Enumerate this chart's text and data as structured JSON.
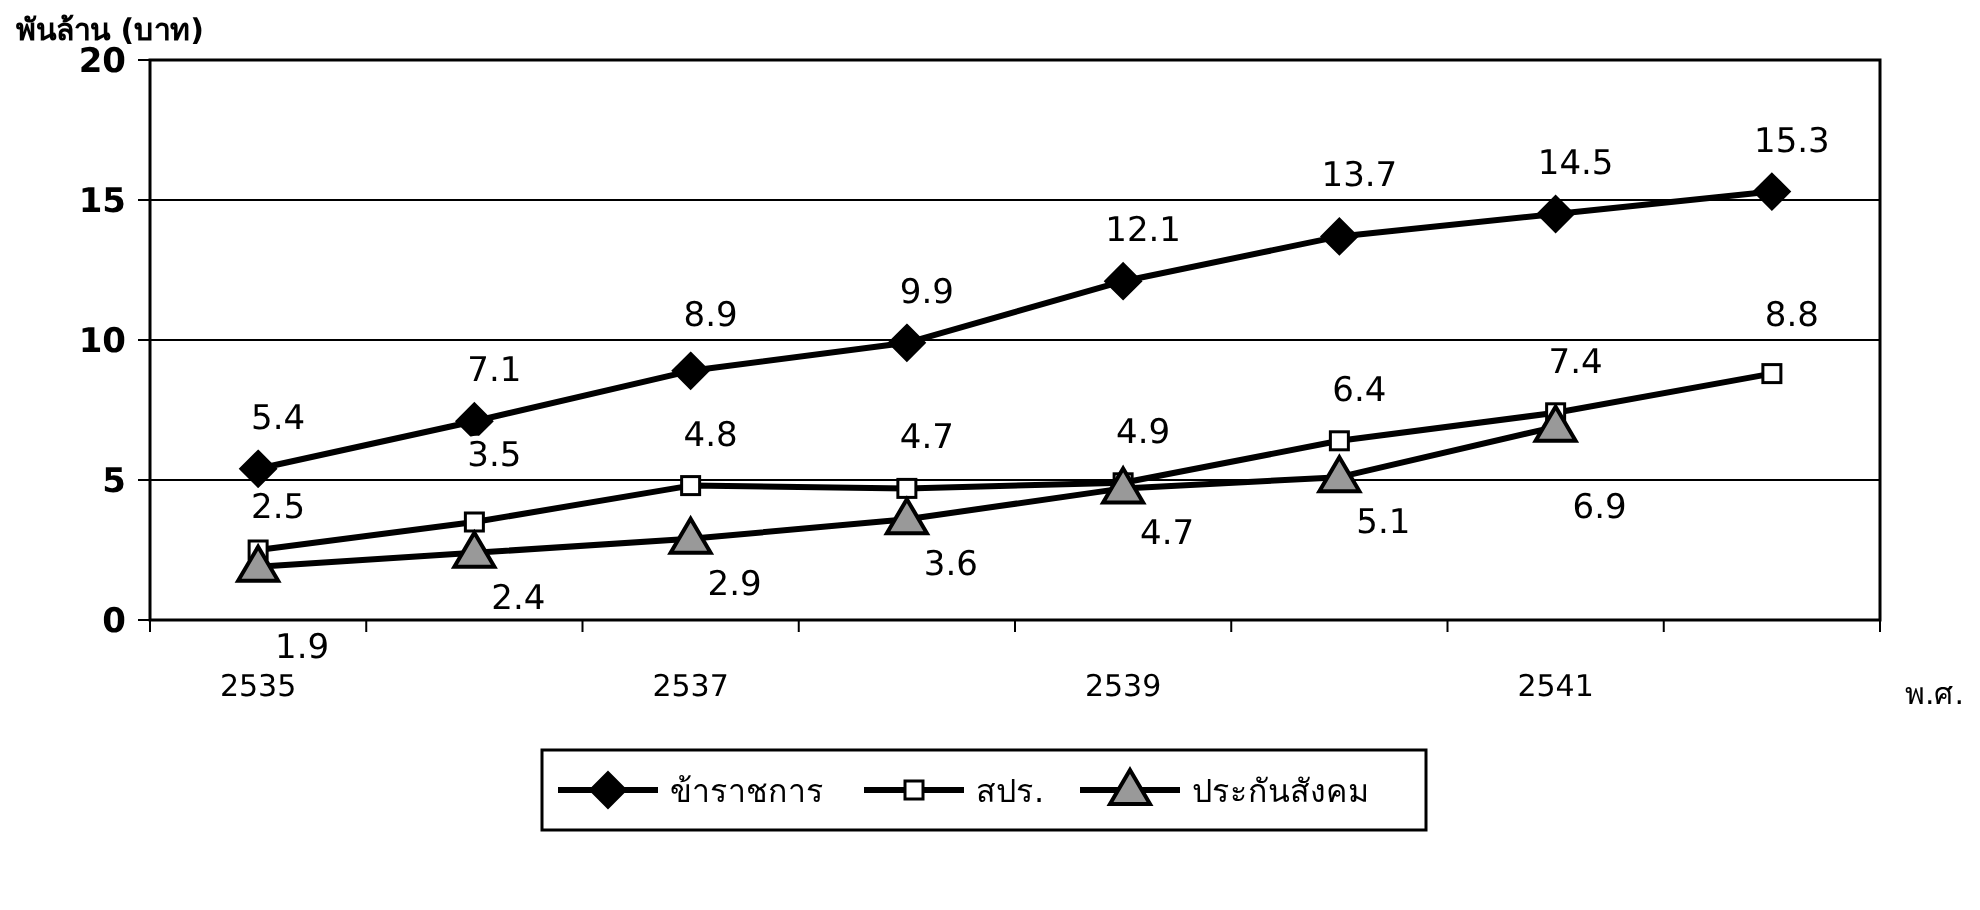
{
  "chart_data": {
    "type": "line",
    "ylabel": "พันล้าน (บาท)",
    "xlabel": "พ.ศ.",
    "categories": [
      "2535",
      null,
      "2537",
      null,
      "2539",
      null,
      "2541",
      null
    ],
    "ylim": [
      0,
      20
    ],
    "yticks": [
      0,
      5,
      10,
      15,
      20
    ],
    "grid": "y",
    "legend": "bottom",
    "data_labels": true,
    "line_style": "solid",
    "series": [
      {
        "name": "ข้าราชการ",
        "color": "#000000",
        "marker": "diamond",
        "values": [
          5.4,
          7.1,
          8.9,
          9.9,
          12.1,
          13.7,
          14.5,
          15.3
        ]
      },
      {
        "name": "สปร.",
        "color": "#000000",
        "marker": "square",
        "values": [
          2.5,
          3.5,
          4.8,
          4.7,
          4.9,
          6.4,
          7.4,
          8.8
        ]
      },
      {
        "name": "ประกันสังคม",
        "color": "#000000",
        "marker": "triangle",
        "values": [
          1.9,
          2.4,
          2.9,
          3.6,
          4.7,
          5.1,
          6.9,
          null
        ]
      }
    ]
  }
}
